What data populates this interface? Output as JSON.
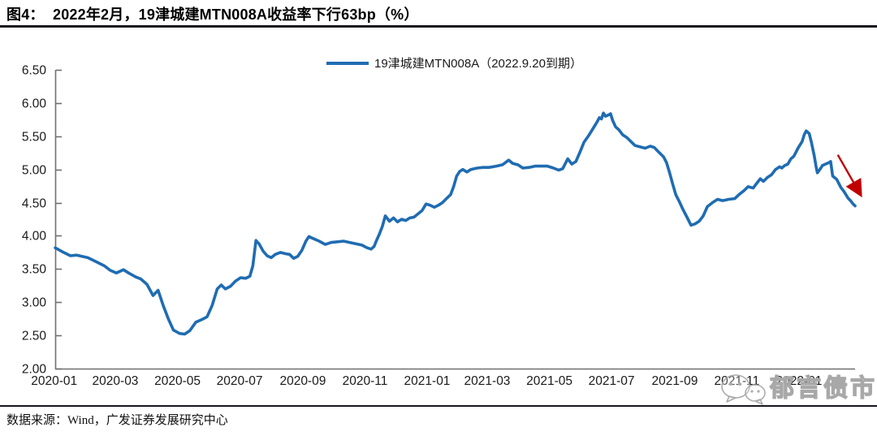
{
  "figure": {
    "title": "图4：  2022年2月，19津城建MTN008A收益率下行63bp（%）",
    "source": "数据来源：Wind，广发证券发展研究中心",
    "watermark_text": "郁言债市"
  },
  "colors": {
    "axis": "#6F6F6F",
    "rule": "#15151F",
    "tick_label": "#1A1A1A",
    "watermark": "#A8A8A8"
  },
  "chart_data": {
    "type": "line",
    "title": "2022年2月，19津城建MTN008A收益率下行63bp（%）",
    "legend": [
      "19津城建MTN008A（2022.9.20到期）"
    ],
    "legend_position": "top-center",
    "grid": false,
    "xlabel": "",
    "ylabel": "",
    "ylim": [
      2.0,
      6.5
    ],
    "yticks": [
      "6.50",
      "6.00",
      "5.50",
      "5.00",
      "4.50",
      "4.00",
      "3.50",
      "3.00",
      "2.50",
      "2.00"
    ],
    "xticks": [
      "2020-01",
      "2020-03",
      "2020-05",
      "2020-07",
      "2020-09",
      "2020-11",
      "2021-01",
      "2021-03",
      "2021-05",
      "2021-07",
      "2021-09",
      "2021-11",
      "2022-01"
    ],
    "series": [
      {
        "name": "19津城建MTN008A（2022.9.20到期）",
        "color": "#1F6CB2",
        "points": [
          [
            "2020-01-02",
            3.82
          ],
          [
            "2020-01-09",
            3.76
          ],
          [
            "2020-01-17",
            3.7
          ],
          [
            "2020-01-23",
            3.71
          ],
          [
            "2020-02-03",
            3.67
          ],
          [
            "2020-02-11",
            3.61
          ],
          [
            "2020-02-19",
            3.55
          ],
          [
            "2020-02-25",
            3.48
          ],
          [
            "2020-03-02",
            3.44
          ],
          [
            "2020-03-09",
            3.49
          ],
          [
            "2020-03-14",
            3.44
          ],
          [
            "2020-03-21",
            3.38
          ],
          [
            "2020-03-26",
            3.35
          ],
          [
            "2020-04-01",
            3.27
          ],
          [
            "2020-04-07",
            3.1
          ],
          [
            "2020-04-12",
            3.18
          ],
          [
            "2020-04-17",
            2.95
          ],
          [
            "2020-04-22",
            2.75
          ],
          [
            "2020-04-27",
            2.58
          ],
          [
            "2020-05-03",
            2.53
          ],
          [
            "2020-05-08",
            2.52
          ],
          [
            "2020-05-13",
            2.57
          ],
          [
            "2020-05-19",
            2.7
          ],
          [
            "2020-05-25",
            2.74
          ],
          [
            "2020-05-30",
            2.78
          ],
          [
            "2020-06-04",
            2.95
          ],
          [
            "2020-06-09",
            3.2
          ],
          [
            "2020-06-13",
            3.26
          ],
          [
            "2020-06-17",
            3.2
          ],
          [
            "2020-06-22",
            3.24
          ],
          [
            "2020-06-27",
            3.32
          ],
          [
            "2020-07-02",
            3.37
          ],
          [
            "2020-07-07",
            3.36
          ],
          [
            "2020-07-11",
            3.39
          ],
          [
            "2020-07-14",
            3.55
          ],
          [
            "2020-07-17",
            3.93
          ],
          [
            "2020-07-20",
            3.88
          ],
          [
            "2020-07-24",
            3.77
          ],
          [
            "2020-07-28",
            3.7
          ],
          [
            "2020-08-01",
            3.67
          ],
          [
            "2020-08-05",
            3.72
          ],
          [
            "2020-08-10",
            3.75
          ],
          [
            "2020-08-15",
            3.73
          ],
          [
            "2020-08-19",
            3.72
          ],
          [
            "2020-08-23",
            3.66
          ],
          [
            "2020-08-27",
            3.69
          ],
          [
            "2020-08-31",
            3.78
          ],
          [
            "2020-09-04",
            3.92
          ],
          [
            "2020-09-07",
            3.99
          ],
          [
            "2020-09-11",
            3.96
          ],
          [
            "2020-09-17",
            3.92
          ],
          [
            "2020-09-23",
            3.87
          ],
          [
            "2020-09-29",
            3.9
          ],
          [
            "2020-10-05",
            3.91
          ],
          [
            "2020-10-11",
            3.92
          ],
          [
            "2020-10-17",
            3.9
          ],
          [
            "2020-10-23",
            3.88
          ],
          [
            "2020-10-29",
            3.86
          ],
          [
            "2020-11-03",
            3.82
          ],
          [
            "2020-11-07",
            3.8
          ],
          [
            "2020-11-10",
            3.84
          ],
          [
            "2020-11-12",
            3.92
          ],
          [
            "2020-11-15",
            4.02
          ],
          [
            "2020-11-18",
            4.14
          ],
          [
            "2020-11-21",
            4.3
          ],
          [
            "2020-11-25",
            4.22
          ],
          [
            "2020-11-29",
            4.27
          ],
          [
            "2020-12-03",
            4.21
          ],
          [
            "2020-12-07",
            4.25
          ],
          [
            "2020-12-11",
            4.23
          ],
          [
            "2020-12-15",
            4.27
          ],
          [
            "2020-12-19",
            4.28
          ],
          [
            "2020-12-23",
            4.33
          ],
          [
            "2020-12-27",
            4.38
          ],
          [
            "2020-12-31",
            4.48
          ],
          [
            "2021-01-04",
            4.46
          ],
          [
            "2021-01-08",
            4.43
          ],
          [
            "2021-01-12",
            4.46
          ],
          [
            "2021-01-16",
            4.5
          ],
          [
            "2021-01-20",
            4.56
          ],
          [
            "2021-01-24",
            4.62
          ],
          [
            "2021-01-27",
            4.74
          ],
          [
            "2021-01-30",
            4.9
          ],
          [
            "2021-02-02",
            4.97
          ],
          [
            "2021-02-05",
            5.0
          ],
          [
            "2021-02-09",
            4.96
          ],
          [
            "2021-02-13",
            5.0
          ],
          [
            "2021-02-19",
            5.02
          ],
          [
            "2021-02-25",
            5.03
          ],
          [
            "2021-03-03",
            5.03
          ],
          [
            "2021-03-10",
            5.05
          ],
          [
            "2021-03-16",
            5.07
          ],
          [
            "2021-03-22",
            5.14
          ],
          [
            "2021-03-26",
            5.09
          ],
          [
            "2021-03-31",
            5.07
          ],
          [
            "2021-04-05",
            5.02
          ],
          [
            "2021-04-11",
            5.03
          ],
          [
            "2021-04-17",
            5.05
          ],
          [
            "2021-04-24",
            5.05
          ],
          [
            "2021-04-29",
            5.05
          ],
          [
            "2021-05-05",
            5.02
          ],
          [
            "2021-05-10",
            4.99
          ],
          [
            "2021-05-14",
            5.01
          ],
          [
            "2021-05-19",
            5.16
          ],
          [
            "2021-05-23",
            5.08
          ],
          [
            "2021-05-27",
            5.12
          ],
          [
            "2021-05-31",
            5.26
          ],
          [
            "2021-06-04",
            5.41
          ],
          [
            "2021-06-09",
            5.52
          ],
          [
            "2021-06-13",
            5.62
          ],
          [
            "2021-06-17",
            5.72
          ],
          [
            "2021-06-19",
            5.78
          ],
          [
            "2021-06-21",
            5.76
          ],
          [
            "2021-06-23",
            5.85
          ],
          [
            "2021-06-25",
            5.8
          ],
          [
            "2021-06-28",
            5.82
          ],
          [
            "2021-06-30",
            5.84
          ],
          [
            "2021-07-02",
            5.74
          ],
          [
            "2021-07-05",
            5.64
          ],
          [
            "2021-07-08",
            5.6
          ],
          [
            "2021-07-12",
            5.52
          ],
          [
            "2021-07-16",
            5.48
          ],
          [
            "2021-07-20",
            5.42
          ],
          [
            "2021-07-24",
            5.36
          ],
          [
            "2021-07-29",
            5.34
          ],
          [
            "2021-08-03",
            5.32
          ],
          [
            "2021-08-08",
            5.35
          ],
          [
            "2021-08-12",
            5.33
          ],
          [
            "2021-08-17",
            5.25
          ],
          [
            "2021-08-21",
            5.19
          ],
          [
            "2021-08-24",
            5.1
          ],
          [
            "2021-08-27",
            4.95
          ],
          [
            "2021-08-30",
            4.78
          ],
          [
            "2021-09-02",
            4.62
          ],
          [
            "2021-09-06",
            4.5
          ],
          [
            "2021-09-09",
            4.4
          ],
          [
            "2021-09-13",
            4.28
          ],
          [
            "2021-09-17",
            4.16
          ],
          [
            "2021-09-21",
            4.18
          ],
          [
            "2021-09-25",
            4.22
          ],
          [
            "2021-09-29",
            4.3
          ],
          [
            "2021-10-03",
            4.44
          ],
          [
            "2021-10-08",
            4.5
          ],
          [
            "2021-10-13",
            4.55
          ],
          [
            "2021-10-18",
            4.53
          ],
          [
            "2021-10-24",
            4.55
          ],
          [
            "2021-10-30",
            4.56
          ],
          [
            "2021-11-03",
            4.62
          ],
          [
            "2021-11-08",
            4.68
          ],
          [
            "2021-11-12",
            4.74
          ],
          [
            "2021-11-17",
            4.72
          ],
          [
            "2021-11-21",
            4.8
          ],
          [
            "2021-11-24",
            4.86
          ],
          [
            "2021-11-27",
            4.82
          ],
          [
            "2021-12-01",
            4.88
          ],
          [
            "2021-12-05",
            4.92
          ],
          [
            "2021-12-09",
            5.0
          ],
          [
            "2021-12-13",
            5.04
          ],
          [
            "2021-12-15",
            5.02
          ],
          [
            "2021-12-18",
            5.06
          ],
          [
            "2021-12-21",
            5.08
          ],
          [
            "2021-12-24",
            5.16
          ],
          [
            "2021-12-27",
            5.2
          ],
          [
            "2021-12-29",
            5.26
          ],
          [
            "2021-12-31",
            5.32
          ],
          [
            "2022-01-04",
            5.42
          ],
          [
            "2022-01-06",
            5.52
          ],
          [
            "2022-01-08",
            5.58
          ],
          [
            "2022-01-11",
            5.54
          ],
          [
            "2022-01-13",
            5.42
          ],
          [
            "2022-01-16",
            5.2
          ],
          [
            "2022-01-18",
            5.02
          ],
          [
            "2022-01-19",
            4.95
          ],
          [
            "2022-01-22",
            5.01
          ],
          [
            "2022-01-24",
            5.06
          ],
          [
            "2022-01-27",
            5.08
          ],
          [
            "2022-01-30",
            5.1
          ],
          [
            "2022-02-01",
            5.12
          ],
          [
            "2022-02-03",
            4.9
          ],
          [
            "2022-02-07",
            4.85
          ],
          [
            "2022-02-09",
            4.79
          ],
          [
            "2022-02-11",
            4.73
          ],
          [
            "2022-02-14",
            4.67
          ],
          [
            "2022-02-16",
            4.62
          ],
          [
            "2022-02-18",
            4.57
          ],
          [
            "2022-02-21",
            4.52
          ],
          [
            "2022-02-23",
            4.48
          ],
          [
            "2022-02-25",
            4.45
          ]
        ]
      }
    ],
    "annotation": {
      "type": "arrow",
      "color": "#C00000",
      "from": [
        "2022-02-08",
        5.22
      ],
      "to": [
        "2022-03-02",
        4.63
      ]
    }
  }
}
